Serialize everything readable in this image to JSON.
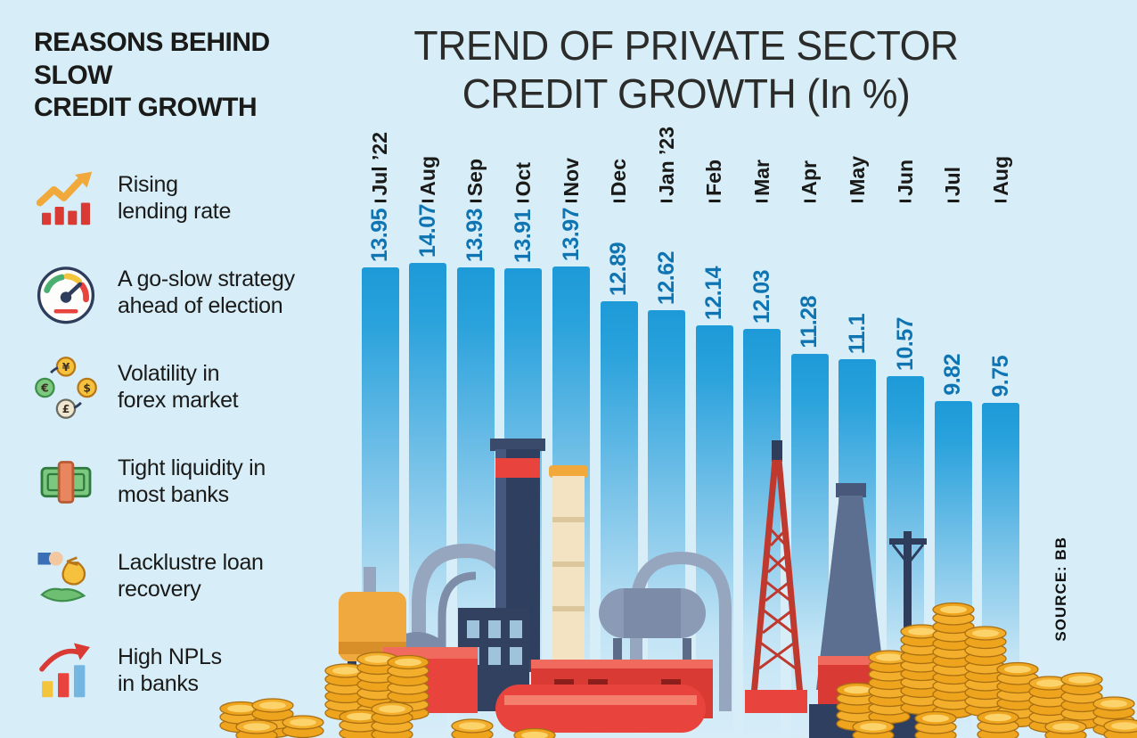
{
  "page": {
    "background": "#d7edf8"
  },
  "left_panel": {
    "title": "REASONS BEHIND SLOW CREDIT GROWTH",
    "title_lines": [
      "REASONS BEHIND SLOW",
      "CREDIT GROWTH"
    ],
    "items": [
      {
        "icon": "rising-rate-icon",
        "lines": [
          "Rising",
          "lending rate"
        ]
      },
      {
        "icon": "speedometer-icon",
        "lines": [
          "A go-slow strategy",
          "ahead of election"
        ]
      },
      {
        "icon": "forex-icon",
        "lines": [
          "Volatility in",
          "forex market"
        ]
      },
      {
        "icon": "cash-bundle-icon",
        "lines": [
          "Tight liquidity in",
          "most banks"
        ]
      },
      {
        "icon": "loan-recovery-icon",
        "lines": [
          "Lacklustre loan",
          "recovery"
        ]
      },
      {
        "icon": "npl-chart-icon",
        "lines": [
          "High NPLs",
          "in banks"
        ]
      }
    ]
  },
  "chart_data": {
    "type": "bar",
    "title": "TREND OF PRIVATE SECTOR CREDIT GROWTH (In %)",
    "title_lines": [
      "TREND OF PRIVATE SECTOR",
      "CREDIT GROWTH (In %)"
    ],
    "categories": [
      "Jul ’22",
      "Aug",
      "Sep",
      "Oct",
      "Nov",
      "Dec",
      "Jan ’23",
      "Feb",
      "Mar",
      "Apr",
      "May",
      "Jun",
      "Jul",
      "Aug"
    ],
    "values": [
      13.95,
      14.07,
      13.93,
      13.91,
      13.97,
      12.89,
      12.62,
      12.14,
      12.03,
      11.28,
      11.1,
      10.57,
      9.82,
      9.75
    ],
    "unit": "%",
    "ylim": [
      0,
      14.07
    ],
    "bar_color": "#1d9ad8",
    "value_label_color": "#0e74b2",
    "source": "SOURCE: BB"
  }
}
